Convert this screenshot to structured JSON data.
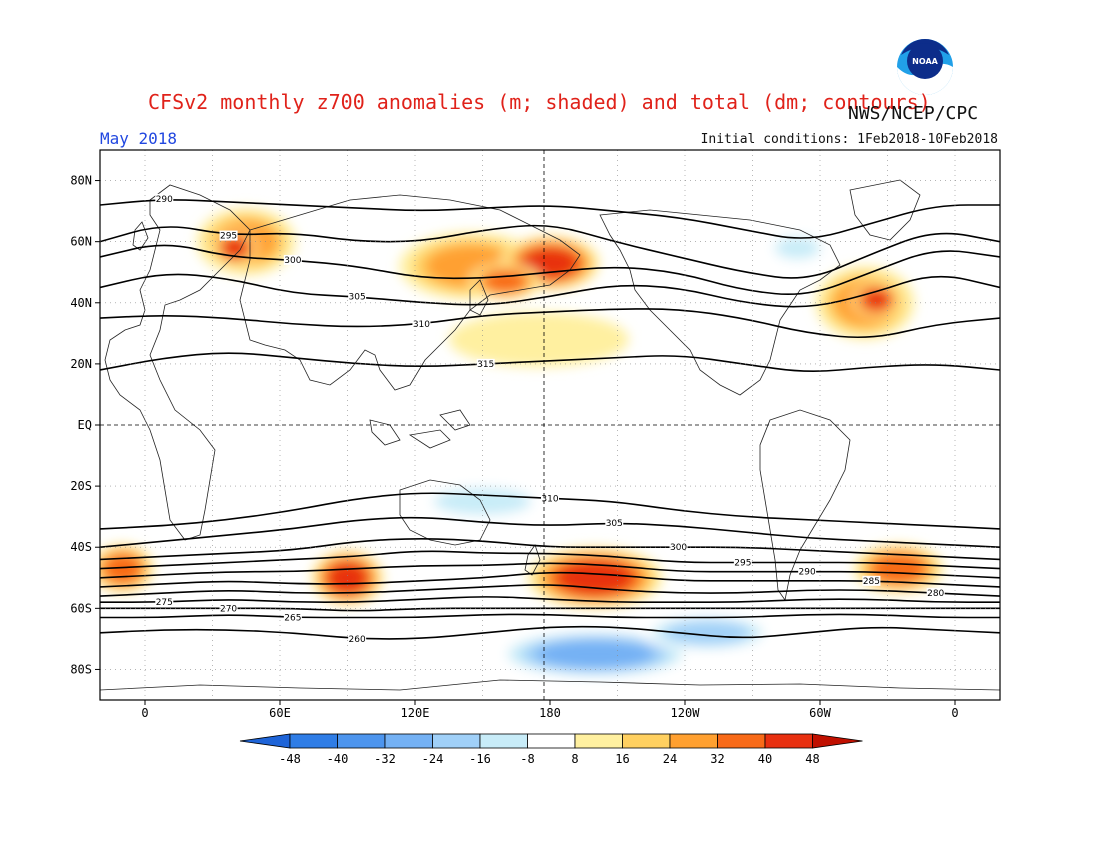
{
  "title": "CFSv2 monthly z700 anomalies (m; shaded) and total (dm; contours)",
  "agency": "NWS/NCEP/CPC",
  "valid_month": "May 2018",
  "initial_conditions": "Initial conditions: 1Feb2018-10Feb2018",
  "logo_text": "NOAA",
  "lat_labels": [
    "80N",
    "60N",
    "40N",
    "20N",
    "EQ",
    "20S",
    "40S",
    "60S",
    "80S"
  ],
  "lat_values": [
    80,
    60,
    40,
    20,
    0,
    -20,
    -40,
    -60,
    -80
  ],
  "lon_labels": [
    "0",
    "60E",
    "120E",
    "180",
    "120W",
    "60W",
    "0"
  ],
  "lon_values": [
    0,
    60,
    120,
    180,
    240,
    300,
    360
  ],
  "lon_range": [
    -20,
    380
  ],
  "lat_range": [
    -90,
    90
  ],
  "colorbar": {
    "labels": [
      "-48",
      "-40",
      "-32",
      "-24",
      "-16",
      "-8",
      "8",
      "16",
      "24",
      "32",
      "40",
      "48"
    ],
    "colors": [
      "#1e64d8",
      "#2f7de6",
      "#4d95ee",
      "#74b1f4",
      "#a0d0f8",
      "#c8ecf8",
      "#ffffff",
      "#fff0a0",
      "#ffd060",
      "#ffa030",
      "#f86a18",
      "#e83010",
      "#c01000"
    ]
  },
  "anomaly_blobs": [
    {
      "lon": 45,
      "lat": 60,
      "rx": 22,
      "ry": 11,
      "value": 24
    },
    {
      "lon": 40,
      "lat": 58,
      "rx": 10,
      "ry": 6,
      "value": 40
    },
    {
      "lon": 145,
      "lat": 52,
      "rx": 32,
      "ry": 11,
      "value": 24
    },
    {
      "lon": 180,
      "lat": 53,
      "rx": 22,
      "ry": 9,
      "value": 40
    },
    {
      "lon": 160,
      "lat": 47,
      "rx": 16,
      "ry": 6,
      "value": 32
    },
    {
      "lon": 320,
      "lat": 40,
      "rx": 22,
      "ry": 12,
      "value": 24
    },
    {
      "lon": 325,
      "lat": 41,
      "rx": 11,
      "ry": 6,
      "value": 40
    },
    {
      "lon": 175,
      "lat": 28,
      "rx": 40,
      "ry": 9,
      "value": 8
    },
    {
      "lon": -10,
      "lat": -47,
      "rx": 14,
      "ry": 8,
      "value": 32
    },
    {
      "lon": 90,
      "lat": -50,
      "rx": 16,
      "ry": 9,
      "value": 40
    },
    {
      "lon": 200,
      "lat": -50,
      "rx": 30,
      "ry": 10,
      "value": 40
    },
    {
      "lon": 335,
      "lat": -47,
      "rx": 20,
      "ry": 8,
      "value": 32
    },
    {
      "lon": 200,
      "lat": -75,
      "rx": 45,
      "ry": 8,
      "value": -32
    },
    {
      "lon": 150,
      "lat": -25,
      "rx": 30,
      "ry": 6,
      "value": -16
    },
    {
      "lon": 290,
      "lat": 58,
      "rx": 14,
      "ry": 5,
      "value": -16
    },
    {
      "lon": 250,
      "lat": -68,
      "rx": 30,
      "ry": 6,
      "value": -24
    }
  ],
  "contour_lines": [
    {
      "label": "290",
      "lats": [
        72,
        74,
        73,
        72,
        71,
        70,
        71,
        72,
        70,
        68,
        64,
        60,
        66,
        72,
        72
      ]
    },
    {
      "label": "295",
      "lats": [
        60,
        66,
        62,
        63,
        60,
        60,
        64,
        66,
        60,
        55,
        50,
        47,
        56,
        64,
        60
      ]
    },
    {
      "label": "300",
      "lats": [
        55,
        60,
        55,
        54,
        52,
        48,
        48,
        50,
        52,
        50,
        44,
        42,
        50,
        58,
        55
      ]
    },
    {
      "label": "305",
      "lats": [
        45,
        50,
        48,
        43,
        42,
        40,
        39,
        42,
        46,
        45,
        40,
        38,
        43,
        50,
        45
      ]
    },
    {
      "label": "310",
      "lats": [
        35,
        36,
        35,
        33,
        32,
        33,
        36,
        37,
        38,
        38,
        35,
        30,
        28,
        33,
        35
      ]
    },
    {
      "label": "315",
      "lats": [
        18,
        22,
        24,
        22,
        20,
        19,
        20,
        21,
        22,
        23,
        20,
        17,
        19,
        20,
        18
      ]
    },
    {
      "label": "310",
      "lats": [
        -34,
        -33,
        -31,
        -28,
        -24,
        -22,
        -23,
        -24,
        -25,
        -28,
        -30,
        -31,
        -32,
        -33,
        -34
      ]
    },
    {
      "label": "305",
      "lats": [
        -40,
        -38,
        -36,
        -34,
        -31,
        -30,
        -32,
        -33,
        -32,
        -33,
        -35,
        -37,
        -38,
        -39,
        -40
      ]
    },
    {
      "label": "300",
      "lats": [
        -44,
        -43,
        -42,
        -41,
        -38,
        -37,
        -38,
        -40,
        -40,
        -40,
        -40,
        -41,
        -42,
        -43,
        -44
      ]
    },
    {
      "label": "295",
      "lats": [
        -47,
        -46,
        -45,
        -44,
        -43,
        -41,
        -42,
        -42,
        -43,
        -45,
        -45,
        -45,
        -45,
        -46,
        -47
      ]
    },
    {
      "label": "290",
      "lats": [
        -50,
        -49,
        -48,
        -48,
        -47,
        -46,
        -46,
        -45,
        -46,
        -48,
        -48,
        -48,
        -48,
        -49,
        -50
      ]
    },
    {
      "label": "285",
      "lats": [
        -53,
        -52,
        -51,
        -52,
        -52,
        -51,
        -50,
        -48,
        -49,
        -51,
        -51,
        -51,
        -51,
        -52,
        -53
      ]
    },
    {
      "label": "280",
      "lats": [
        -56,
        -55,
        -54,
        -55,
        -55,
        -54,
        -53,
        -52,
        -54,
        -55,
        -55,
        -54,
        -54,
        -55,
        -56
      ]
    },
    {
      "label": "275",
      "lats": [
        -58,
        -58,
        -57,
        -58,
        -58,
        -57,
        -56,
        -57,
        -58,
        -58,
        -58,
        -57,
        -57,
        -58,
        -58
      ]
    },
    {
      "label": "270",
      "lats": [
        -60,
        -60,
        -60,
        -60,
        -61,
        -60,
        -60,
        -60,
        -60,
        -60,
        -60,
        -60,
        -60,
        -60,
        -60
      ]
    },
    {
      "label": "265",
      "lats": [
        -63,
        -63,
        -62,
        -63,
        -63,
        -63,
        -62,
        -62,
        -63,
        -63,
        -63,
        -62,
        -62,
        -63,
        -63
      ]
    },
    {
      "label": "260",
      "lats": [
        -68,
        -67,
        -67,
        -68,
        -70,
        -70,
        -68,
        -66,
        -66,
        -68,
        -70,
        -68,
        -66,
        -67,
        -68
      ]
    }
  ]
}
